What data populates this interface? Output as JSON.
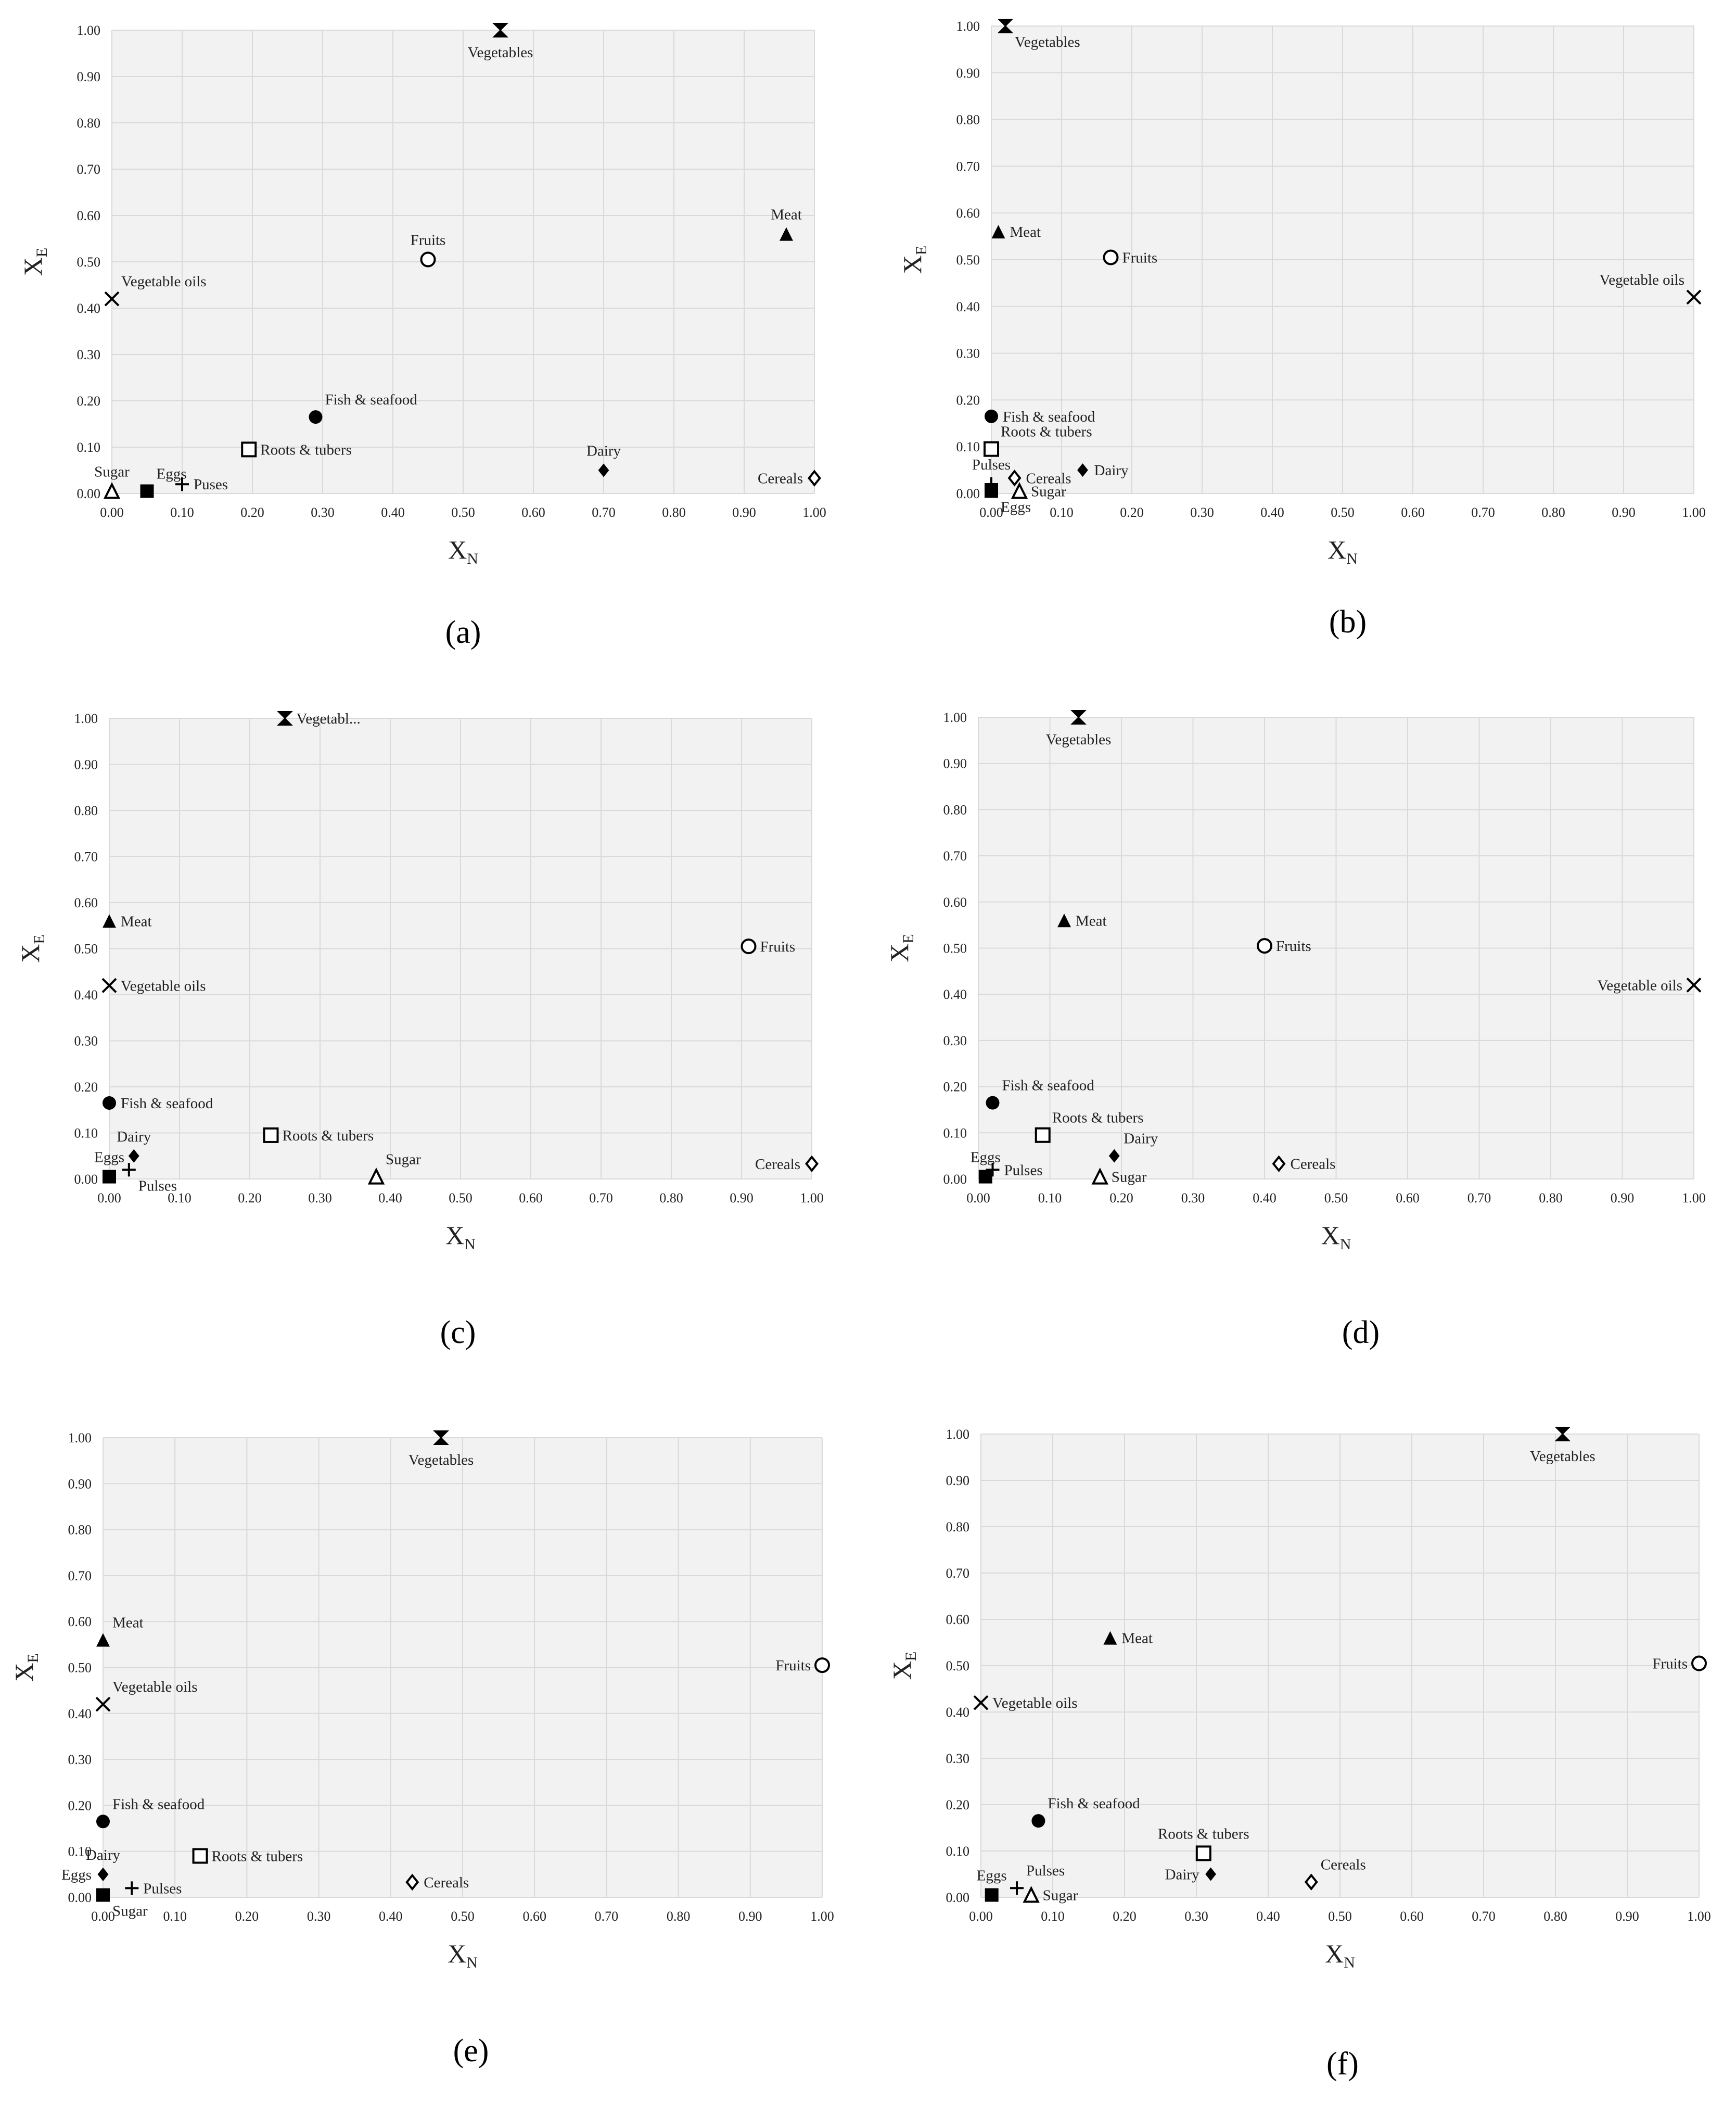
{
  "chart_data": [
    {
      "panel_label": "(a)",
      "type": "scatter",
      "xlabel": "X",
      "xlabel_sub": "N",
      "ylabel": "X",
      "ylabel_sub": "E",
      "xlim": [
        0,
        1
      ],
      "ylim": [
        0,
        1
      ],
      "xticks": [
        "0.00",
        "0.10",
        "0.20",
        "0.30",
        "0.40",
        "0.50",
        "0.60",
        "0.70",
        "0.80",
        "0.90",
        "1.00"
      ],
      "yticks": [
        "0.00",
        "0.10",
        "0.20",
        "0.30",
        "0.40",
        "0.50",
        "0.60",
        "0.70",
        "0.80",
        "0.90",
        "1.00"
      ],
      "grid": true,
      "points": [
        {
          "name": "Vegetables",
          "x": 0.553,
          "y": 1.0,
          "marker": "bowtie",
          "label_pos": "below"
        },
        {
          "name": "Meat",
          "x": 0.96,
          "y": 0.56,
          "marker": "triangle-filled",
          "label_pos": "above"
        },
        {
          "name": "Fruits",
          "x": 0.45,
          "y": 0.505,
          "marker": "circle-open",
          "label_pos": "above"
        },
        {
          "name": "Vegetable oils",
          "x": 0.0,
          "y": 0.42,
          "marker": "cross",
          "label_pos": "above-right"
        },
        {
          "name": "Fish & seafood",
          "x": 0.29,
          "y": 0.165,
          "marker": "circle-filled",
          "label_pos": "above-right"
        },
        {
          "name": "Roots & tubers",
          "x": 0.195,
          "y": 0.095,
          "marker": "square-open",
          "label_pos": "right"
        },
        {
          "name": "Dairy",
          "x": 0.7,
          "y": 0.05,
          "marker": "diamond-filled",
          "label_pos": "above"
        },
        {
          "name": "Cereals",
          "x": 1.0,
          "y": 0.033,
          "marker": "diamond-open",
          "label_pos": "left"
        },
        {
          "name": "Sugar",
          "x": 0.0,
          "y": 0.005,
          "marker": "triangle-open",
          "label_pos": "above"
        },
        {
          "name": "Eggs",
          "x": 0.05,
          "y": 0.005,
          "marker": "square-filled",
          "label_pos": "above-right"
        },
        {
          "name": "Puses",
          "x": 0.1,
          "y": 0.02,
          "marker": "plus",
          "label_pos": "right"
        }
      ]
    },
    {
      "panel_label": "(b)",
      "type": "scatter",
      "xlabel": "X",
      "xlabel_sub": "N",
      "ylabel": "X",
      "ylabel_sub": "E",
      "xlim": [
        0,
        1
      ],
      "ylim": [
        0,
        1
      ],
      "xticks": [
        "0.00",
        "0.10",
        "0.20",
        "0.30",
        "0.40",
        "0.50",
        "0.60",
        "0.70",
        "0.80",
        "0.90",
        "1.00"
      ],
      "yticks": [
        "0.00",
        "0.10",
        "0.20",
        "0.30",
        "0.40",
        "0.50",
        "0.60",
        "0.70",
        "0.80",
        "0.90",
        "1.00"
      ],
      "grid": true,
      "points": [
        {
          "name": "Vegetables",
          "x": 0.02,
          "y": 1.0,
          "marker": "bowtie",
          "label_pos": "below-right"
        },
        {
          "name": "Meat",
          "x": 0.01,
          "y": 0.56,
          "marker": "triangle-filled",
          "label_pos": "right"
        },
        {
          "name": "Fruits",
          "x": 0.17,
          "y": 0.505,
          "marker": "circle-open",
          "label_pos": "right"
        },
        {
          "name": "Vegetable oils",
          "x": 1.0,
          "y": 0.42,
          "marker": "cross",
          "label_pos": "above-left"
        },
        {
          "name": "Fish & seafood",
          "x": 0.0,
          "y": 0.165,
          "marker": "circle-filled",
          "label_pos": "right"
        },
        {
          "name": "Roots & tubers",
          "x": 0.0,
          "y": 0.095,
          "marker": "square-open",
          "label_pos": "above-right"
        },
        {
          "name": "Cereals",
          "x": 0.033,
          "y": 0.033,
          "marker": "diamond-open",
          "label_pos": "right"
        },
        {
          "name": "Dairy",
          "x": 0.13,
          "y": 0.05,
          "marker": "diamond-filled",
          "label_pos": "right"
        },
        {
          "name": "Pulses",
          "x": 0.0,
          "y": 0.02,
          "marker": "plus",
          "label_pos": "above"
        },
        {
          "name": "Sugar",
          "x": 0.04,
          "y": 0.005,
          "marker": "triangle-open",
          "label_pos": "right"
        },
        {
          "name": "Eggs",
          "x": 0.0,
          "y": 0.005,
          "marker": "square-filled",
          "label_pos": "below-right"
        }
      ]
    },
    {
      "panel_label": "(c)",
      "type": "scatter",
      "xlabel": "X",
      "xlabel_sub": "N",
      "ylabel": "X",
      "ylabel_sub": "E",
      "xlim": [
        0,
        1
      ],
      "ylim": [
        0,
        1
      ],
      "xticks": [
        "0.00",
        "0.10",
        "0.20",
        "0.30",
        "0.40",
        "0.50",
        "0.60",
        "0.70",
        "0.80",
        "0.90",
        "1.00"
      ],
      "yticks": [
        "0.00",
        "0.10",
        "0.20",
        "0.30",
        "0.40",
        "0.50",
        "0.60",
        "0.70",
        "0.80",
        "0.90",
        "1.00"
      ],
      "grid": true,
      "points": [
        {
          "name": "Vegetabl...",
          "x": 0.25,
          "y": 1.0,
          "marker": "bowtie",
          "label_pos": "right"
        },
        {
          "name": "Meat",
          "x": 0.0,
          "y": 0.56,
          "marker": "triangle-filled",
          "label_pos": "right"
        },
        {
          "name": "Fruits",
          "x": 0.91,
          "y": 0.505,
          "marker": "circle-open",
          "label_pos": "right"
        },
        {
          "name": "Vegetable oils",
          "x": 0.0,
          "y": 0.42,
          "marker": "cross",
          "label_pos": "right"
        },
        {
          "name": "Fish & seafood",
          "x": 0.0,
          "y": 0.165,
          "marker": "circle-filled",
          "label_pos": "right"
        },
        {
          "name": "Roots & tubers",
          "x": 0.23,
          "y": 0.095,
          "marker": "square-open",
          "label_pos": "right"
        },
        {
          "name": "Dairy",
          "x": 0.035,
          "y": 0.05,
          "marker": "diamond-filled",
          "label_pos": "above"
        },
        {
          "name": "Eggs",
          "x": 0.0,
          "y": 0.005,
          "marker": "square-filled",
          "label_pos": "above"
        },
        {
          "name": "Pulses",
          "x": 0.028,
          "y": 0.02,
          "marker": "plus",
          "label_pos": "below-right"
        },
        {
          "name": "Sugar",
          "x": 0.38,
          "y": 0.005,
          "marker": "triangle-open",
          "label_pos": "above-right"
        },
        {
          "name": "Cereals",
          "x": 1.0,
          "y": 0.033,
          "marker": "diamond-open",
          "label_pos": "left"
        }
      ]
    },
    {
      "panel_label": "(d)",
      "type": "scatter",
      "xlabel": "X",
      "xlabel_sub": "N",
      "ylabel": "X",
      "ylabel_sub": "E",
      "xlim": [
        0,
        1
      ],
      "ylim": [
        0,
        1
      ],
      "xticks": [
        "0.00",
        "0.10",
        "0.20",
        "0.30",
        "0.40",
        "0.50",
        "0.60",
        "0.70",
        "0.80",
        "0.90",
        "1.00"
      ],
      "yticks": [
        "0.00",
        "0.10",
        "0.20",
        "0.30",
        "0.40",
        "0.50",
        "0.60",
        "0.70",
        "0.80",
        "0.90",
        "1.00"
      ],
      "grid": true,
      "points": [
        {
          "name": "Vegetables",
          "x": 0.14,
          "y": 1.0,
          "marker": "bowtie",
          "label_pos": "below"
        },
        {
          "name": "Meat",
          "x": 0.12,
          "y": 0.56,
          "marker": "triangle-filled",
          "label_pos": "right"
        },
        {
          "name": "Fruits",
          "x": 0.4,
          "y": 0.505,
          "marker": "circle-open",
          "label_pos": "right"
        },
        {
          "name": "Vegetable oils",
          "x": 1.0,
          "y": 0.42,
          "marker": "cross",
          "label_pos": "left"
        },
        {
          "name": "Fish & seafood",
          "x": 0.02,
          "y": 0.165,
          "marker": "circle-filled",
          "label_pos": "above-right"
        },
        {
          "name": "Roots & tubers",
          "x": 0.09,
          "y": 0.095,
          "marker": "square-open",
          "label_pos": "above-right"
        },
        {
          "name": "Dairy",
          "x": 0.19,
          "y": 0.05,
          "marker": "diamond-filled",
          "label_pos": "above-right"
        },
        {
          "name": "Cereals",
          "x": 0.42,
          "y": 0.033,
          "marker": "diamond-open",
          "label_pos": "right"
        },
        {
          "name": "Eggs",
          "x": 0.01,
          "y": 0.005,
          "marker": "square-filled",
          "label_pos": "above"
        },
        {
          "name": "Pulses",
          "x": 0.02,
          "y": 0.02,
          "marker": "plus",
          "label_pos": "right"
        },
        {
          "name": "Sugar",
          "x": 0.17,
          "y": 0.005,
          "marker": "triangle-open",
          "label_pos": "right"
        }
      ]
    },
    {
      "panel_label": "(e)",
      "type": "scatter",
      "xlabel": "X",
      "xlabel_sub": "N",
      "ylabel": "X",
      "ylabel_sub": "E",
      "xlim": [
        0,
        1
      ],
      "ylim": [
        0,
        1
      ],
      "xticks": [
        "0.00",
        "0.10",
        "0.20",
        "0.30",
        "0.40",
        "0.50",
        "0.60",
        "0.70",
        "0.80",
        "0.90",
        "1.00"
      ],
      "yticks": [
        "0.00",
        "0.10",
        "0.20",
        "0.30",
        "0.40",
        "0.50",
        "0.60",
        "0.70",
        "0.80",
        "0.90",
        "1.00"
      ],
      "grid": true,
      "points": [
        {
          "name": "Vegetables",
          "x": 0.47,
          "y": 1.0,
          "marker": "bowtie",
          "label_pos": "below"
        },
        {
          "name": "Meat",
          "x": 0.0,
          "y": 0.56,
          "marker": "triangle-filled",
          "label_pos": "above-right"
        },
        {
          "name": "Fruits",
          "x": 1.0,
          "y": 0.505,
          "marker": "circle-open",
          "label_pos": "left"
        },
        {
          "name": "Vegetable oils",
          "x": 0.0,
          "y": 0.42,
          "marker": "cross",
          "label_pos": "above-right"
        },
        {
          "name": "Fish & seafood",
          "x": 0.0,
          "y": 0.165,
          "marker": "circle-filled",
          "label_pos": "above-right"
        },
        {
          "name": "Roots & tubers",
          "x": 0.135,
          "y": 0.09,
          "marker": "square-open",
          "label_pos": "right"
        },
        {
          "name": "Dairy",
          "x": 0.0,
          "y": 0.05,
          "marker": "diamond-filled",
          "label_pos": "above"
        },
        {
          "name": "Eggs",
          "x": 0.0,
          "y": 0.05,
          "marker": "diamond-filled",
          "label_pos": "left"
        },
        {
          "name": "Pulses",
          "x": 0.04,
          "y": 0.02,
          "marker": "plus",
          "label_pos": "right"
        },
        {
          "name": "Sugar",
          "x": 0.0,
          "y": 0.005,
          "marker": "square-filled",
          "label_pos": "below-right"
        },
        {
          "name": "Cereals",
          "x": 0.43,
          "y": 0.033,
          "marker": "diamond-open",
          "label_pos": "right"
        }
      ]
    },
    {
      "panel_label": "(f)",
      "type": "scatter",
      "xlabel": "X",
      "xlabel_sub": "N",
      "ylabel": "X",
      "ylabel_sub": "E",
      "xlim": [
        0,
        1
      ],
      "ylim": [
        0,
        1
      ],
      "xticks": [
        "0.00",
        "0.10",
        "0.20",
        "0.30",
        "0.40",
        "0.50",
        "0.60",
        "0.70",
        "0.80",
        "0.90",
        "1.00"
      ],
      "yticks": [
        "0.00",
        "0.10",
        "0.20",
        "0.30",
        "0.40",
        "0.50",
        "0.60",
        "0.70",
        "0.80",
        "0.90",
        "1.00"
      ],
      "grid": true,
      "points": [
        {
          "name": "Vegetables",
          "x": 0.81,
          "y": 1.0,
          "marker": "bowtie",
          "label_pos": "below"
        },
        {
          "name": "Meat",
          "x": 0.18,
          "y": 0.56,
          "marker": "triangle-filled",
          "label_pos": "right"
        },
        {
          "name": "Fruits",
          "x": 1.0,
          "y": 0.505,
          "marker": "circle-open",
          "label_pos": "left"
        },
        {
          "name": "Vegetable oils",
          "x": 0.0,
          "y": 0.42,
          "marker": "cross",
          "label_pos": "right"
        },
        {
          "name": "Fish & seafood",
          "x": 0.08,
          "y": 0.165,
          "marker": "circle-filled",
          "label_pos": "above-right"
        },
        {
          "name": "Roots & tubers",
          "x": 0.31,
          "y": 0.095,
          "marker": "square-open",
          "label_pos": "above"
        },
        {
          "name": "Dairy",
          "x": 0.32,
          "y": 0.05,
          "marker": "diamond-filled",
          "label_pos": "left"
        },
        {
          "name": "Cereals",
          "x": 0.46,
          "y": 0.033,
          "marker": "diamond-open",
          "label_pos": "above-right"
        },
        {
          "name": "Eggs",
          "x": 0.015,
          "y": 0.005,
          "marker": "square-filled",
          "label_pos": "above"
        },
        {
          "name": "Pulses",
          "x": 0.05,
          "y": 0.02,
          "marker": "plus",
          "label_pos": "above-right"
        },
        {
          "name": "Sugar",
          "x": 0.07,
          "y": 0.005,
          "marker": "triangle-open",
          "label_pos": "right"
        }
      ]
    }
  ]
}
